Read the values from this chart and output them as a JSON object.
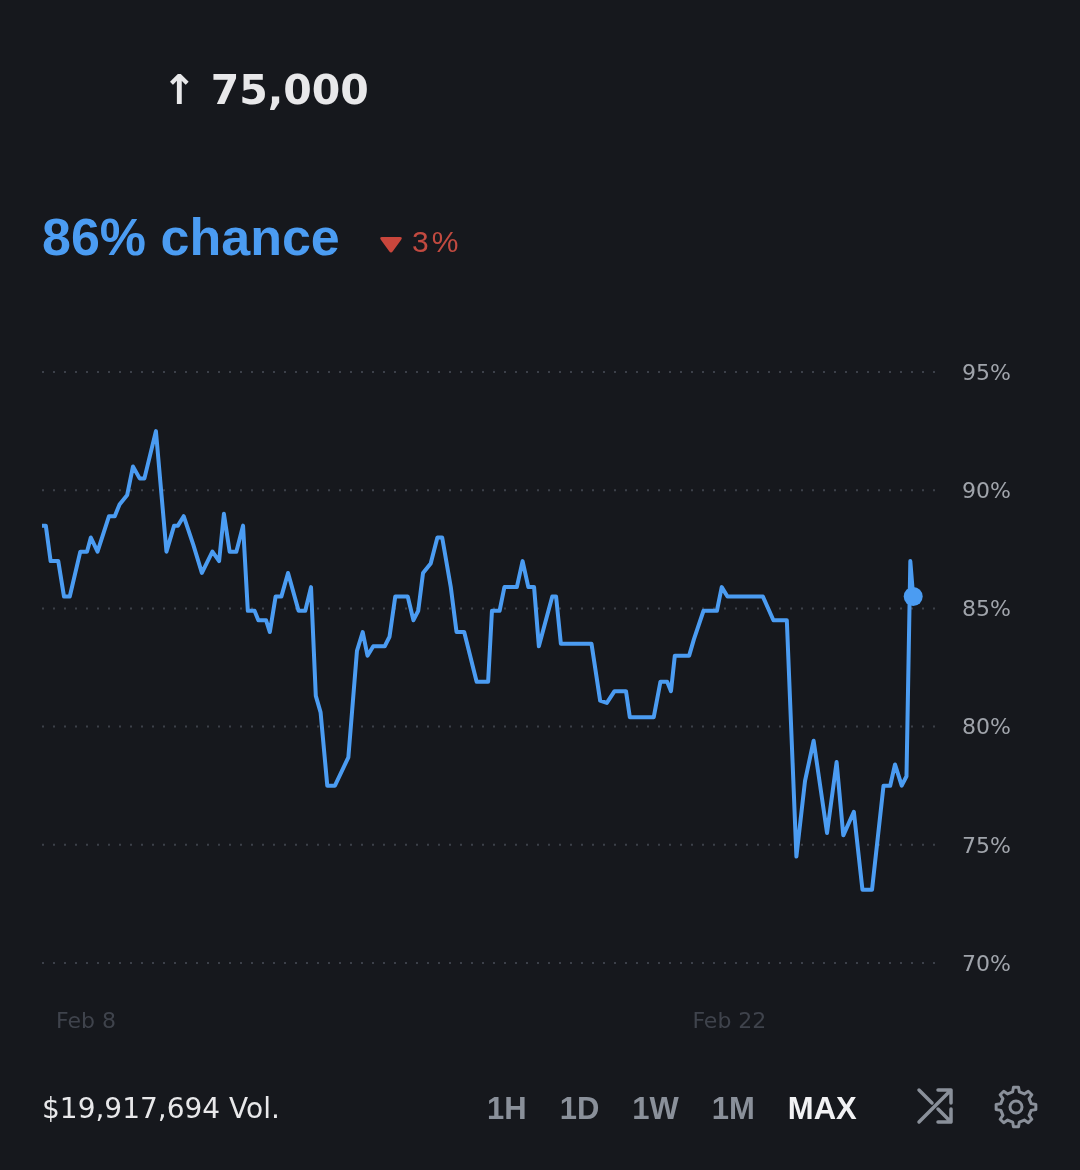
{
  "chart_data": {
    "type": "line",
    "title": "↑ 75,000",
    "subtitle": "86% chance",
    "annotations": [
      "3%",
      "$19,917,694 Vol.",
      "1H",
      "1D",
      "1W",
      "1M",
      "MAX"
    ],
    "series": [
      {
        "color": "#4b9cf2",
        "x": [
          "--02-07T01:00",
          "--02-07T03:00",
          "--02-07T05:30",
          "--02-07T09:30",
          "--02-07T12:30",
          "--02-07T15:30",
          "--02-07T21:00",
          "--02-08T00:30",
          "--02-08T02:30",
          "--02-08T06:00",
          "--02-08T12:00",
          "--02-08T15:00",
          "--02-08T17:30",
          "--02-08T21:30",
          "--02-09T00:30",
          "--02-09T04:00",
          "--02-09T06:30",
          "--02-09T12:30",
          "--02-09T18:00",
          "--02-09T22:00",
          "--02-10T00:00",
          "--02-10T03:00",
          "--02-10T08:00",
          "--02-10T12:30",
          "--02-10T18:00",
          "--02-10T21:30",
          "--02-11T00:00",
          "--02-11T03:00",
          "--02-11T06:30",
          "--02-11T10:00",
          "--02-11T12:30",
          "--02-11T16:00",
          "--02-11T18:00",
          "--02-11T22:00",
          "--02-12T00:00",
          "--02-12T03:00",
          "--02-12T06:00",
          "--02-12T09:30",
          "--02-12T15:00",
          "--02-12T18:30",
          "--02-12T21:30",
          "--02-13T00:00",
          "--02-13T02:30",
          "--02-13T06:00",
          "--02-13T10:00",
          "--02-13T17:00",
          "--02-13T21:30",
          "--02-14T00:30",
          "--02-14T03:00",
          "--02-14T06:00",
          "--02-14T12:00",
          "--02-14T14:30",
          "--02-14T17:30",
          "--02-15T00:00",
          "--02-15T03:00",
          "--02-15T05:30",
          "--02-15T08:00",
          "--02-15T12:00",
          "--02-15T15:30",
          "--02-15T18:00",
          "--02-15T22:30",
          "--02-16T01:30",
          "--02-16T05:30",
          "--02-16T12:00",
          "--02-16T18:00",
          "--02-16T20:00",
          "--02-17T00:00",
          "--02-17T02:30",
          "--02-17T09:00",
          "--02-17T12:00",
          "--02-17T15:00",
          "--02-17T18:00",
          "--02-17T20:30",
          "--02-18T03:30",
          "--02-18T05:30",
          "--02-18T08:00",
          "--02-19T00:00",
          "--02-19T04:30",
          "--02-19T08:00",
          "--02-19T12:00",
          "--02-19T18:00",
          "--02-19T20:00",
          "--02-20T08:30",
          "--02-20T12:00",
          "--02-20T15:30",
          "--02-20T17:30",
          "--02-20T19:30",
          "--02-21T03:00",
          "--02-21T05:30",
          "--02-21T10:30",
          "--02-21T17:30",
          "--02-21T20:00",
          "--02-21T23:00",
          "--02-22T17:30",
          "--02-22T23:00",
          "--02-23T06:00",
          "--02-23T11:00",
          "--02-23T15:30",
          "--02-23T20:00",
          "--02-24T03:00",
          "--02-24T08:00",
          "--02-24T11:30",
          "--02-24T17:00",
          "--02-24T21:30",
          "--02-25T02:30",
          "--02-25T08:30",
          "--02-25T12:00",
          "--02-25T14:30",
          "--02-25T18:00",
          "--02-25T20:30",
          "--02-25T22:30",
          "--02-26T00:00"
        ],
        "values": [
          88.5,
          88.5,
          87.0,
          87.0,
          85.5,
          85.5,
          87.4,
          87.4,
          88.0,
          87.4,
          88.9,
          88.9,
          89.4,
          89.8,
          91.0,
          90.5,
          90.5,
          92.5,
          87.4,
          88.5,
          88.5,
          88.9,
          87.7,
          86.5,
          87.4,
          87.0,
          89.0,
          87.4,
          87.4,
          88.5,
          84.9,
          84.9,
          84.5,
          84.5,
          84.0,
          85.5,
          85.5,
          86.5,
          84.9,
          84.9,
          85.9,
          81.3,
          80.6,
          77.5,
          77.5,
          78.7,
          83.2,
          84.0,
          83.0,
          83.4,
          83.4,
          83.8,
          85.5,
          85.5,
          84.5,
          84.9,
          86.5,
          86.9,
          88.0,
          88.0,
          85.9,
          84.0,
          84.0,
          81.9,
          81.9,
          84.9,
          84.9,
          85.9,
          85.9,
          87.0,
          85.9,
          85.9,
          83.4,
          85.5,
          85.5,
          83.5,
          83.5,
          81.1,
          81.0,
          81.5,
          81.5,
          80.4,
          80.4,
          81.9,
          81.9,
          81.5,
          83.0,
          83.0,
          83.7,
          84.9,
          84.9,
          85.9,
          85.5,
          85.5,
          84.5,
          84.5,
          74.5,
          77.7,
          79.4,
          75.5,
          78.5,
          75.4,
          76.4,
          73.1,
          73.1,
          77.5,
          77.5,
          78.4,
          77.5,
          77.9,
          87.0,
          85.5
        ]
      },
      {
        "type": "scatter",
        "color": "#4b9cf2",
        "x": [
          "--02-26T00:00"
        ],
        "values": [
          85.5
        ]
      }
    ],
    "xlim": [
      "--02-07T01:00",
      "--02-26T14:00"
    ],
    "xticks": [
      {
        "value": "--02-08",
        "label": "Feb 8"
      },
      {
        "value": "--02-22",
        "label": "Feb 22"
      }
    ],
    "ylim": [
      70,
      95
    ],
    "yticks": [
      {
        "value": 70,
        "label": "70%"
      },
      {
        "value": 75,
        "label": "75%"
      },
      {
        "value": 80,
        "label": "80%"
      },
      {
        "value": 85,
        "label": "85%"
      },
      {
        "value": 90,
        "label": "90%"
      },
      {
        "value": 95,
        "label": "95%"
      }
    ],
    "grid": "y",
    "line_style": "solid"
  }
}
